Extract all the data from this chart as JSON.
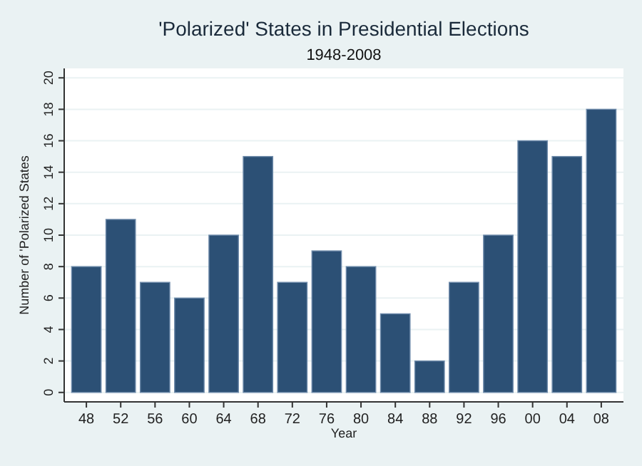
{
  "chart_data": {
    "type": "bar",
    "title": "'Polarized' States in Presidential Elections",
    "subtitle": "1948-2008",
    "xlabel": "Year",
    "ylabel": "Number of 'Polarized States",
    "categories": [
      "48",
      "52",
      "56",
      "60",
      "64",
      "68",
      "72",
      "76",
      "80",
      "84",
      "88",
      "92",
      "96",
      "00",
      "04",
      "08"
    ],
    "values": [
      8,
      11,
      7,
      6,
      10,
      15,
      7,
      9,
      8,
      5,
      2,
      7,
      10,
      16,
      15,
      18
    ],
    "color": "#2c5075",
    "ylim": [
      -0.6,
      20.6
    ],
    "yticks": [
      0,
      2,
      4,
      6,
      8,
      10,
      12,
      14,
      16,
      18,
      20
    ],
    "grid": "y"
  }
}
